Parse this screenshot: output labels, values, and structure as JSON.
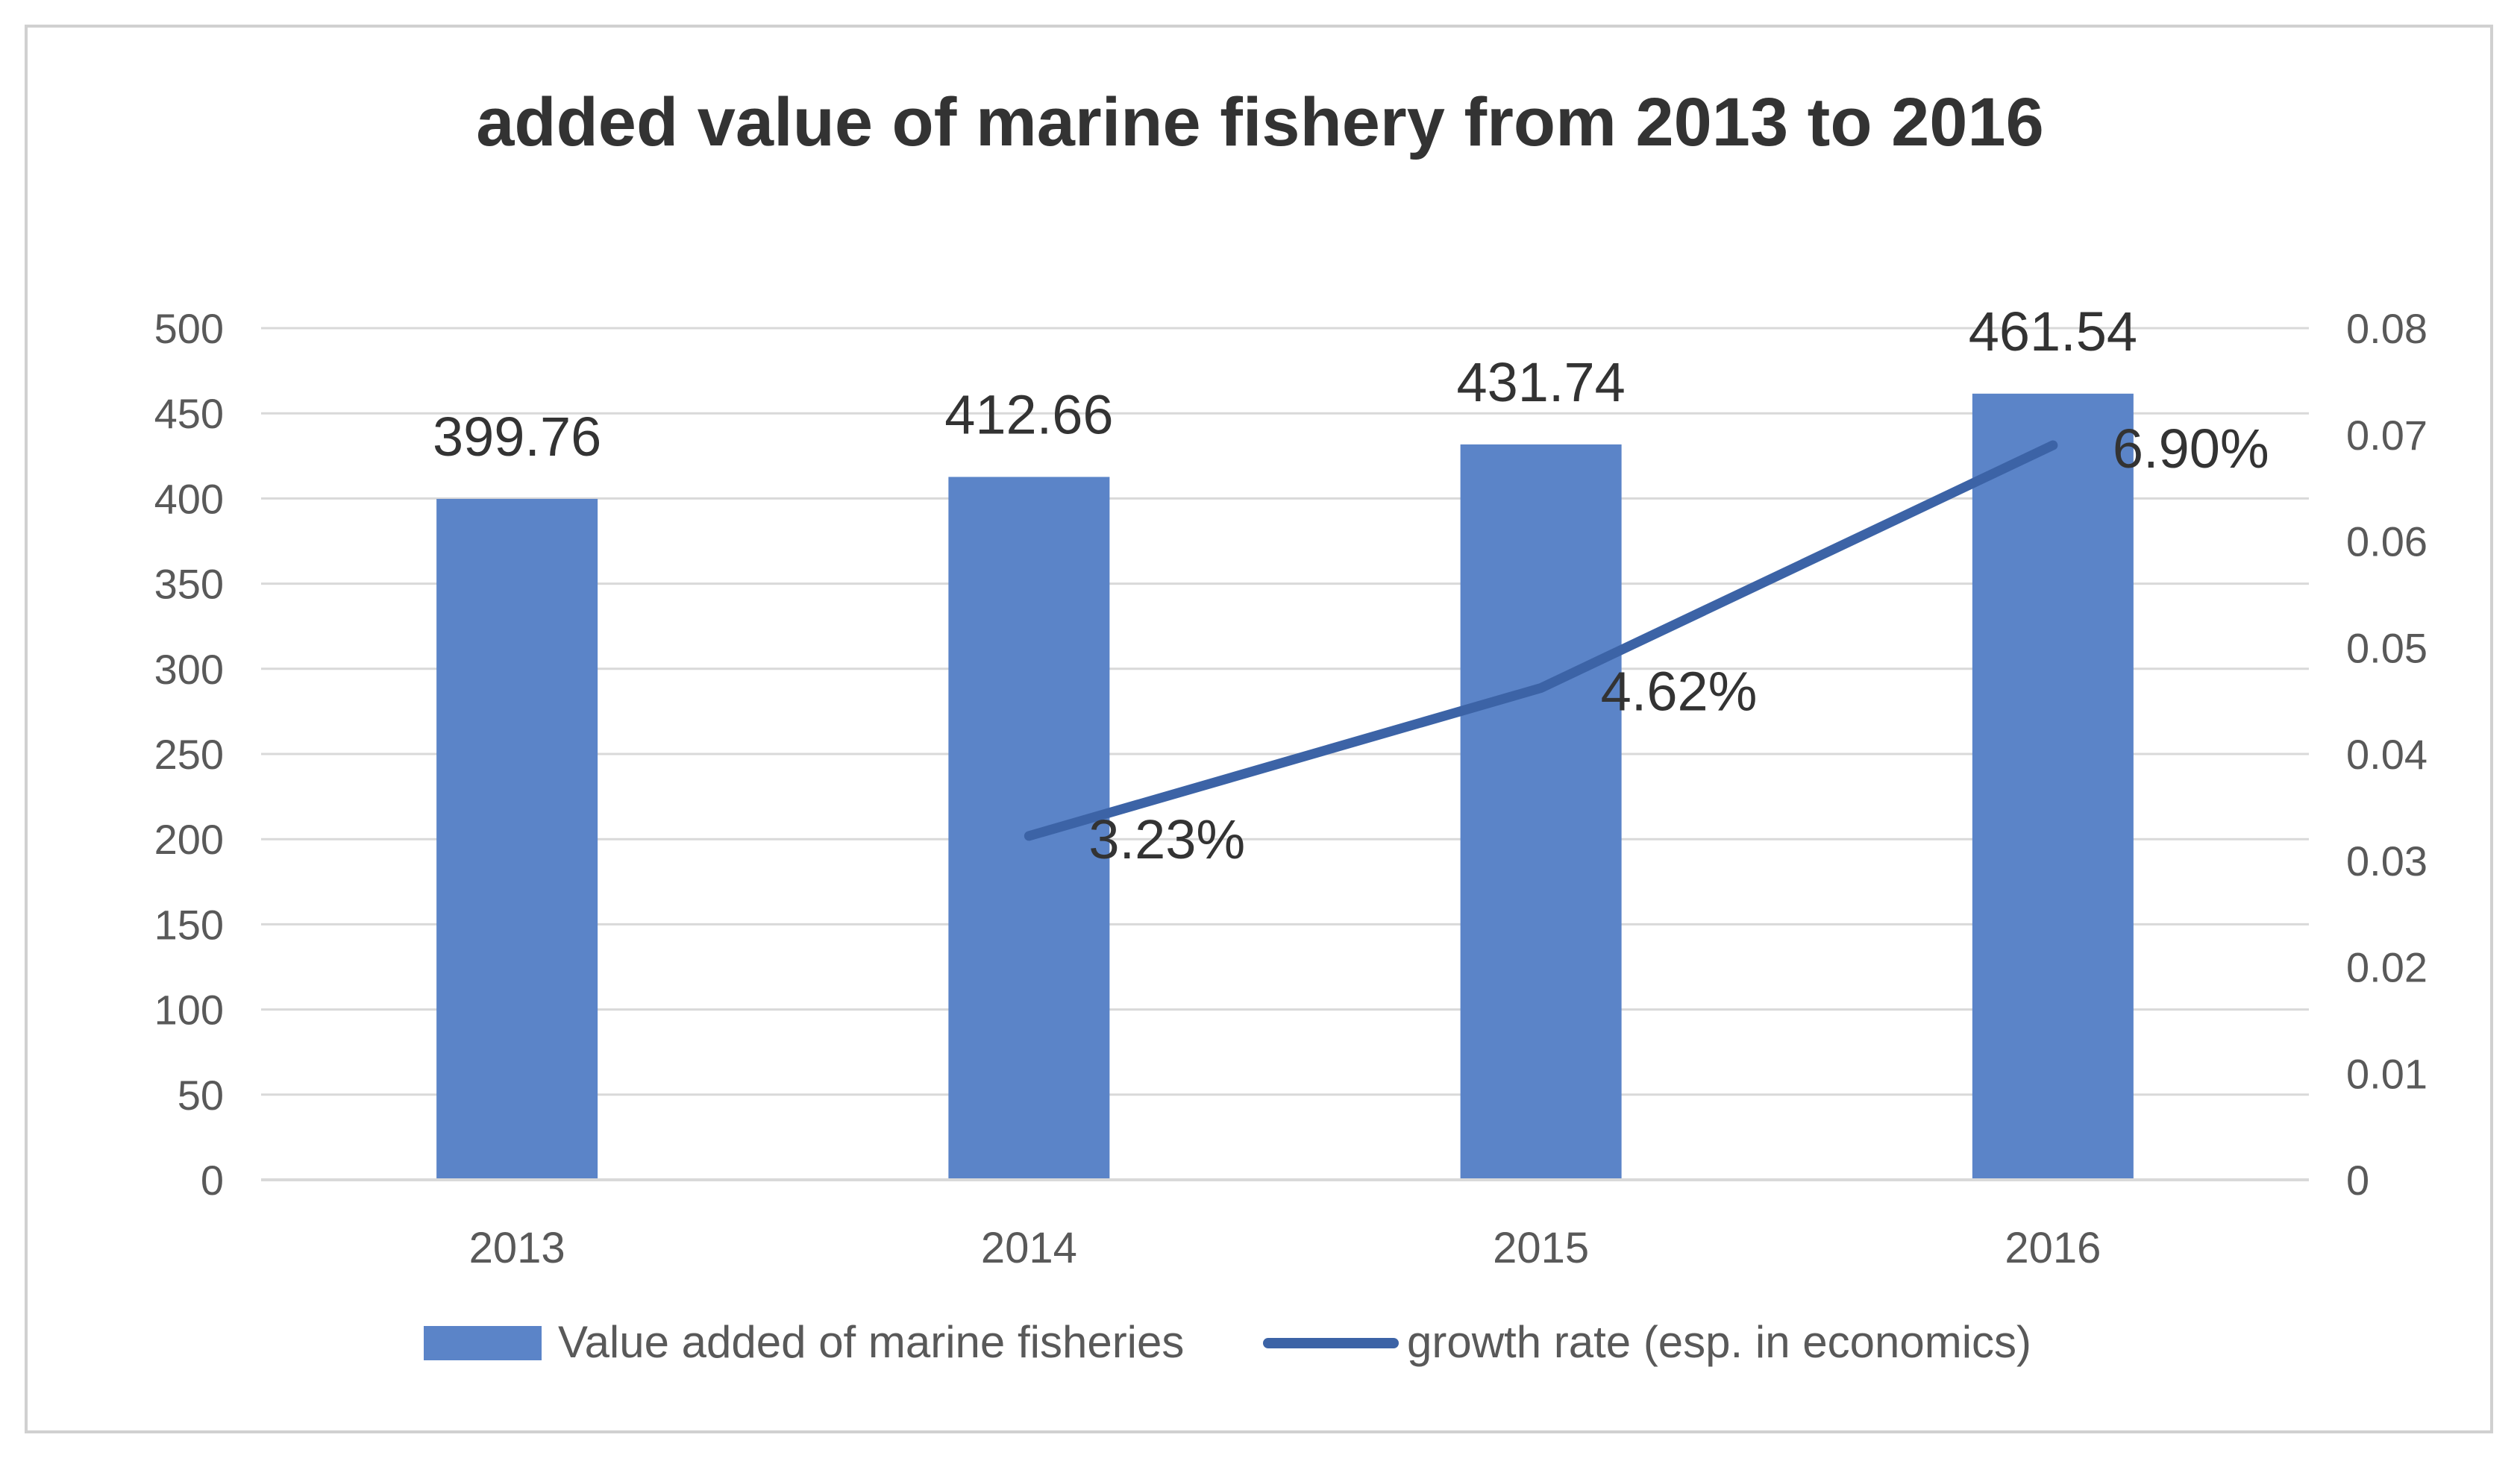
{
  "chart_data": {
    "type": "bar",
    "title": "added value of marine fishery from 2013 to 2016",
    "categories": [
      "2013",
      "2014",
      "2015",
      "2016"
    ],
    "series": [
      {
        "name": "Value added of marine fisheries",
        "kind": "bar",
        "axis": "left",
        "values": [
          399.76,
          412.66,
          431.74,
          461.54
        ],
        "labels": [
          "399.76",
          "412.66",
          "431.74",
          "461.54"
        ]
      },
      {
        "name": "growth rate (esp. in economics)",
        "kind": "line",
        "axis": "right",
        "values": [
          null,
          0.0323,
          0.0462,
          0.069
        ],
        "labels": [
          "",
          "3.23%",
          "4.62%",
          "6.90%"
        ]
      }
    ],
    "y_left": {
      "min": 0,
      "max": 500,
      "ticks": [
        "0",
        "50",
        "100",
        "150",
        "200",
        "250",
        "300",
        "350",
        "400",
        "450",
        "500"
      ]
    },
    "y_right": {
      "min": 0,
      "max": 0.08,
      "ticks": [
        "0",
        "0.01",
        "0.02",
        "0.03",
        "0.04",
        "0.05",
        "0.06",
        "0.07",
        "0.08"
      ]
    },
    "grid": true,
    "legend_position": "bottom",
    "colors": {
      "bar": "#5b84c8",
      "line": "#3c63a6",
      "grid": "#d9d9d9",
      "text": "#595959",
      "title": "#333333",
      "label": "#333333",
      "frame": "#d0d0d0"
    }
  }
}
